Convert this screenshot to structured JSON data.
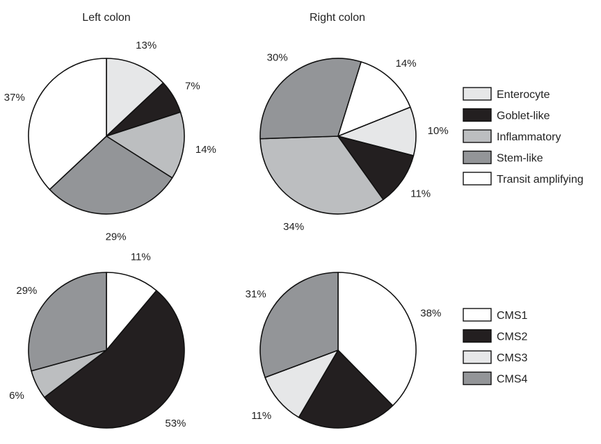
{
  "chart_data": [
    {
      "type": "pie",
      "title": "Left colon",
      "slices": [
        {
          "label": "Enterocyte",
          "value": 13,
          "display": "13%",
          "color": "#e6e7e8"
        },
        {
          "label": "Goblet-like",
          "value": 7,
          "display": "7%",
          "color": "#231f20"
        },
        {
          "label": "Inflammatory",
          "value": 14,
          "display": "14%",
          "color": "#bcbec0"
        },
        {
          "label": "Stem-like",
          "value": 29,
          "display": "29%",
          "color": "#939598"
        },
        {
          "label": "Transit amplifying",
          "value": 37,
          "display": "37%",
          "color": "#ffffff"
        }
      ]
    },
    {
      "type": "pie",
      "title": "Right colon",
      "slices": [
        {
          "label": "Inflammatory",
          "value": 34,
          "display": "34%",
          "color": "#bcbec0"
        },
        {
          "label": "Stem-like",
          "value": 30,
          "display": "30%",
          "color": "#939598"
        },
        {
          "label": "Transit amplifying",
          "value": 14,
          "display": "14%",
          "color": "#ffffff"
        },
        {
          "label": "Enterocyte",
          "value": 10,
          "display": "10%",
          "color": "#e6e7e8"
        },
        {
          "label": "Goblet-like",
          "value": 11,
          "display": "11%",
          "color": "#231f20"
        }
      ]
    },
    {
      "type": "pie",
      "title": "",
      "slices": [
        {
          "label": "CMS1",
          "value": 11,
          "display": "11%",
          "color": "#ffffff"
        },
        {
          "label": "CMS2",
          "value": 53,
          "display": "53%",
          "color": "#231f20"
        },
        {
          "label": "CMS3",
          "value": 6,
          "display": "6%",
          "color": "#bcbec0"
        },
        {
          "label": "CMS4",
          "value": 29,
          "display": "29%",
          "color": "#939598"
        }
      ]
    },
    {
      "type": "pie",
      "title": "",
      "slices": [
        {
          "label": "CMS1",
          "value": 38,
          "display": "38%",
          "color": "#ffffff"
        },
        {
          "label": "CMS2",
          "value": 21,
          "display": "21%",
          "color": "#231f20"
        },
        {
          "label": "CMS3",
          "value": 11,
          "display": "11%",
          "color": "#e6e7e8"
        },
        {
          "label": "CMS4",
          "value": 31,
          "display": "31%",
          "color": "#939598"
        }
      ]
    }
  ],
  "legends": [
    {
      "entries": [
        {
          "label": "Enterocyte",
          "color": "#e6e7e8"
        },
        {
          "label": "Goblet-like",
          "color": "#231f20"
        },
        {
          "label": "Inflammatory",
          "color": "#bcbec0"
        },
        {
          "label": "Stem-like",
          "color": "#939598"
        },
        {
          "label": "Transit amplifying",
          "color": "#ffffff"
        }
      ]
    },
    {
      "entries": [
        {
          "label": "CMS1",
          "color": "#ffffff"
        },
        {
          "label": "CMS2",
          "color": "#231f20"
        },
        {
          "label": "CMS3",
          "color": "#e6e7e8"
        },
        {
          "label": "CMS4",
          "color": "#939598"
        }
      ]
    }
  ]
}
